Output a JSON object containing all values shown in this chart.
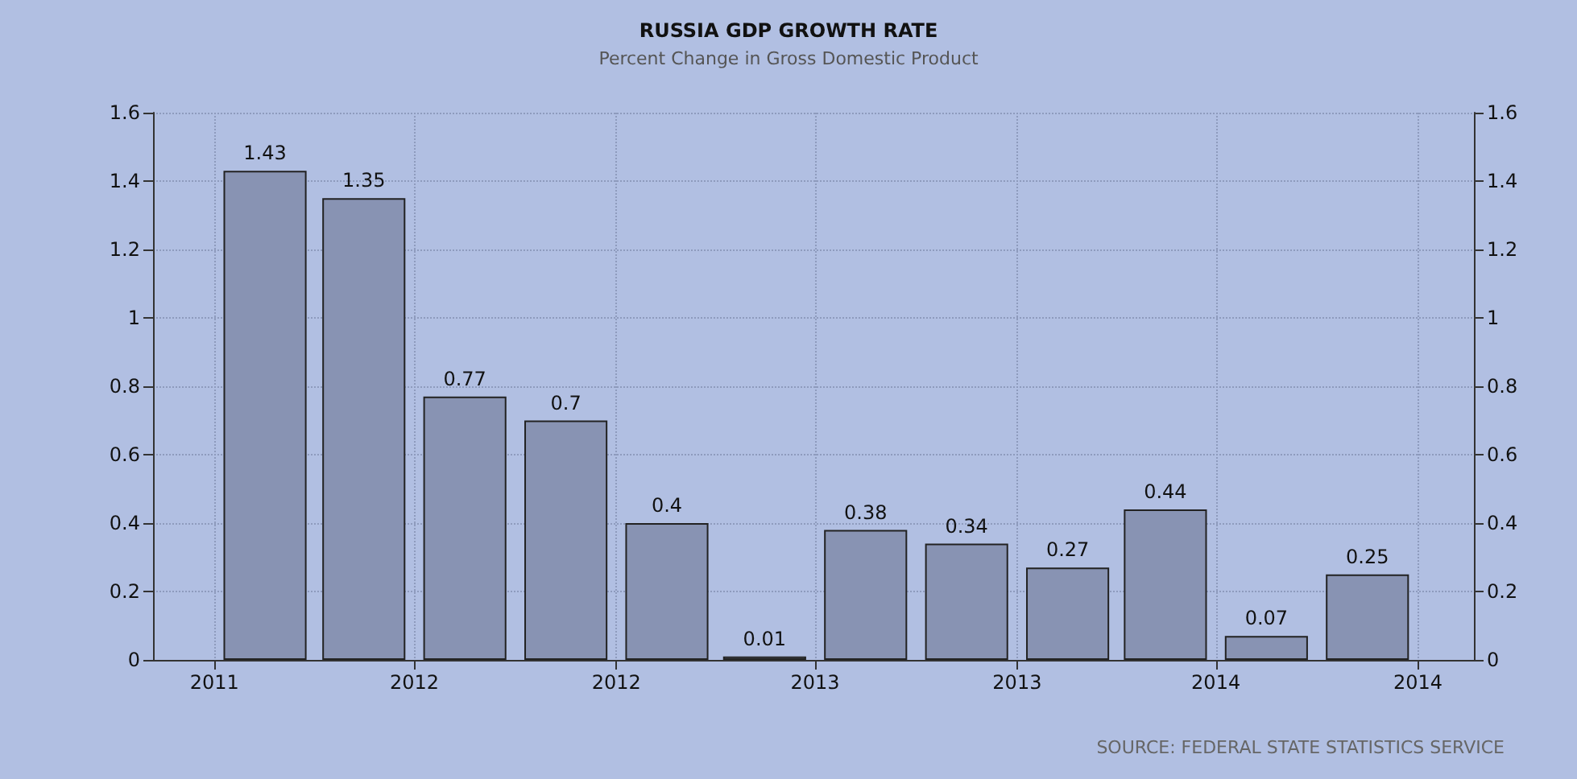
{
  "chart_data": {
    "type": "bar",
    "title": "RUSSIA GDP GROWTH RATE",
    "subtitle": "Percent Change in Gross Domestic Product",
    "annotations": [
      "SOURCE: FEDERAL STATE STATISTICS SERVICE"
    ],
    "x": [
      "2012-02-15",
      "2012-05-15",
      "2012-08-15",
      "2012-11-15",
      "2013-02-15",
      "2013-05-15",
      "2013-08-15",
      "2013-11-15",
      "2014-02-15",
      "2014-05-15",
      "2014-08-15",
      "2014-11-15"
    ],
    "values": [
      1.43,
      1.35,
      0.77,
      0.7,
      0.4,
      0.01,
      0.38,
      0.34,
      0.27,
      0.44,
      0.07,
      0.25
    ],
    "color": "#8893b3",
    "xlim": [
      "2011-11-05",
      "2015-02-20"
    ],
    "xticks": [
      {
        "value": "2011-12-31",
        "label": "2011"
      },
      {
        "value": "2012-06-30",
        "label": "2012"
      },
      {
        "value": "2012-12-31",
        "label": "2012"
      },
      {
        "value": "2013-06-30",
        "label": "2013"
      },
      {
        "value": "2013-12-31",
        "label": "2013"
      },
      {
        "value": "2014-06-30",
        "label": "2014"
      },
      {
        "value": "2014-12-31",
        "label": "2014"
      }
    ],
    "ylim": [
      0,
      1.6
    ],
    "yticks": [
      0,
      0.2,
      0.4,
      0.6,
      0.8,
      1,
      1.2,
      1.4,
      1.6
    ],
    "y2lim": [
      0,
      1.6
    ],
    "y2ticks": [
      0,
      0.2,
      0.4,
      0.6,
      0.8,
      1,
      1.2,
      1.4,
      1.6
    ],
    "grid": true,
    "data_labels": true
  }
}
